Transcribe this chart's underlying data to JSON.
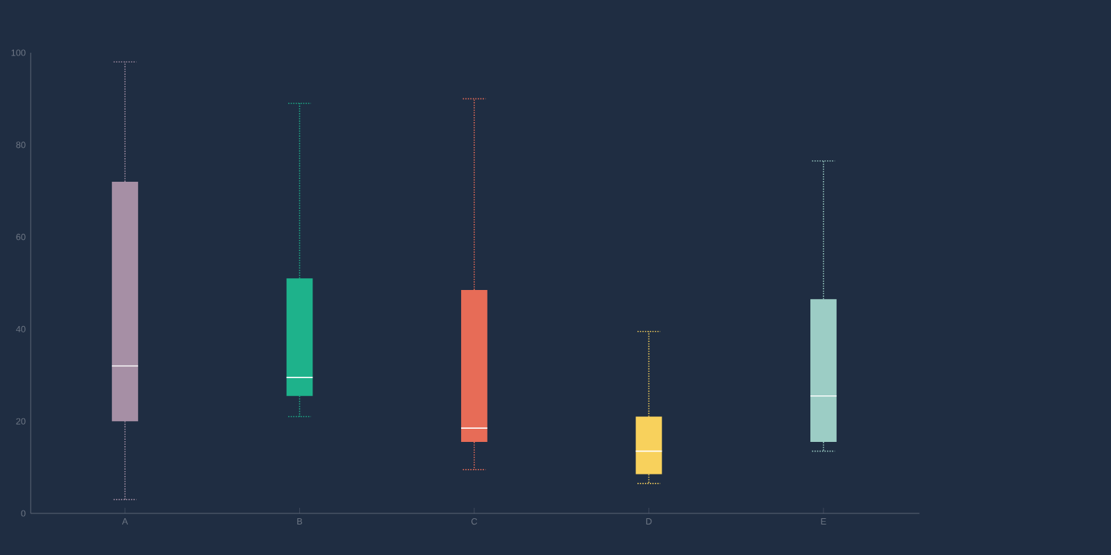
{
  "chart_data": {
    "type": "box",
    "categories": [
      "A",
      "B",
      "C",
      "D",
      "E"
    ],
    "colors": [
      "#a68fa5",
      "#1eb28b",
      "#e76c57",
      "#f8d15c",
      "#9ccdc5"
    ],
    "boxes": [
      {
        "low": 3,
        "q1": 20,
        "median": 32,
        "q3": 72,
        "high": 98
      },
      {
        "low": 21,
        "q1": 25.5,
        "median": 29.5,
        "q3": 51,
        "high": 89
      },
      {
        "low": 9.5,
        "q1": 15.5,
        "median": 18.5,
        "q3": 48.5,
        "high": 90
      },
      {
        "low": 6.5,
        "q1": 8.5,
        "median": 13.5,
        "q3": 21,
        "high": 39.5
      },
      {
        "low": 13.5,
        "q1": 15.5,
        "median": 25.5,
        "q3": 46.5,
        "high": 76.5
      }
    ],
    "ylim": [
      0,
      100
    ],
    "yticks": [
      0,
      20,
      40,
      60,
      80,
      100
    ]
  }
}
